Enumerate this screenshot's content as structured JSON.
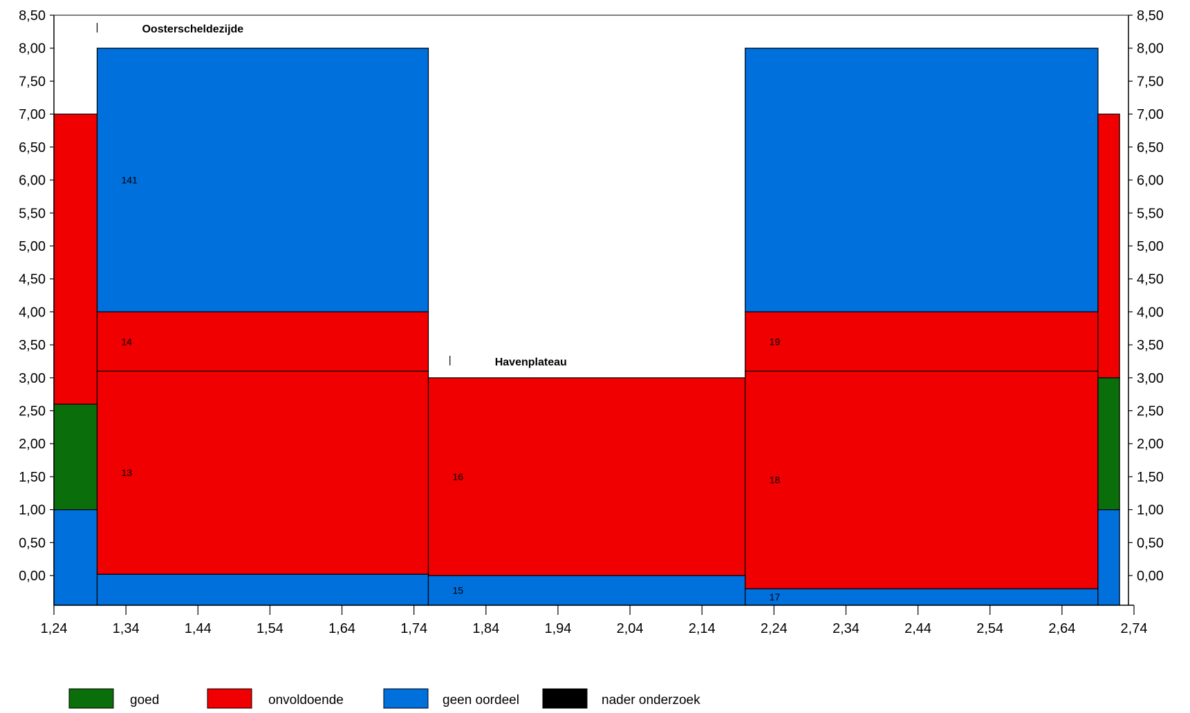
{
  "chart_data": {
    "type": "stacked-rect",
    "xlim": [
      1.24,
      2.74
    ],
    "ylim": [
      -0.45,
      8.5
    ],
    "x_ticks": [
      "1,24",
      "1,34",
      "1,44",
      "1,54",
      "1,64",
      "1,74",
      "1,84",
      "1,94",
      "2,04",
      "2,14",
      "2,24",
      "2,34",
      "2,44",
      "2,54",
      "2,64",
      "2,74"
    ],
    "x_tick_values": [
      1.24,
      1.34,
      1.44,
      1.54,
      1.64,
      1.74,
      1.84,
      1.94,
      2.04,
      2.14,
      2.24,
      2.34,
      2.44,
      2.54,
      2.64,
      2.74
    ],
    "y_ticks": [
      "0,00",
      "0,50",
      "1,00",
      "1,50",
      "2,00",
      "2,50",
      "3,00",
      "3,50",
      "4,00",
      "4,50",
      "5,00",
      "5,50",
      "6,00",
      "6,50",
      "7,00",
      "7,50",
      "8,00",
      "8,50"
    ],
    "y_tick_values": [
      0,
      0.5,
      1,
      1.5,
      2,
      2.5,
      3,
      3.5,
      4,
      4.5,
      5,
      5.5,
      6,
      6.5,
      7,
      7.5,
      8,
      8.5
    ],
    "colors": {
      "goed": "#0a6e0a",
      "onvoldoende": "#f00000",
      "geen_oordeel": "#0070dd",
      "nader_onderzoek": "#000000"
    },
    "legend": [
      {
        "key": "goed",
        "label": "goed"
      },
      {
        "key": "onvoldoende",
        "label": "onvoldoende"
      },
      {
        "key": "geen_oordeel",
        "label": "geen oordeel"
      },
      {
        "key": "nader_onderzoek",
        "label": "nader onderzoek"
      }
    ],
    "section_labels": [
      {
        "text": "Oosterscheldezijde",
        "x": 1.3,
        "y": 8.3
      },
      {
        "text": "Havenplateau",
        "x": 1.79,
        "y": 3.25
      }
    ],
    "blocks": [
      {
        "x0": 1.24,
        "x1": 1.3,
        "y0": -0.5,
        "y1": 1.0,
        "cat": "geen_oordeel",
        "label": ""
      },
      {
        "x0": 1.24,
        "x1": 1.3,
        "y0": 1.0,
        "y1": 2.6,
        "cat": "goed",
        "label": ""
      },
      {
        "x0": 1.24,
        "x1": 1.3,
        "y0": 2.6,
        "y1": 7.0,
        "cat": "onvoldoende",
        "label": ""
      },
      {
        "x0": 1.3,
        "x1": 1.76,
        "y0": -0.5,
        "y1": 0.02,
        "cat": "geen_oordeel",
        "label": ""
      },
      {
        "x0": 1.3,
        "x1": 1.76,
        "y0": 0.02,
        "y1": 3.1,
        "cat": "onvoldoende",
        "label": "13"
      },
      {
        "x0": 1.3,
        "x1": 1.76,
        "y0": 3.1,
        "y1": 4.0,
        "cat": "onvoldoende",
        "label": "14"
      },
      {
        "x0": 1.3,
        "x1": 1.76,
        "y0": 4.0,
        "y1": 8.0,
        "cat": "geen_oordeel",
        "label": "141"
      },
      {
        "x0": 1.76,
        "x1": 2.2,
        "y0": -0.5,
        "y1": 0.0,
        "cat": "geen_oordeel",
        "label": "15"
      },
      {
        "x0": 1.76,
        "x1": 2.2,
        "y0": 0.0,
        "y1": 3.0,
        "cat": "onvoldoende",
        "label": "16"
      },
      {
        "x0": 2.2,
        "x1": 2.69,
        "y0": -0.5,
        "y1": -0.2,
        "cat": "geen_oordeel",
        "label": "17"
      },
      {
        "x0": 2.2,
        "x1": 2.69,
        "y0": -0.2,
        "y1": 3.1,
        "cat": "onvoldoende",
        "label": "18"
      },
      {
        "x0": 2.2,
        "x1": 2.69,
        "y0": 3.1,
        "y1": 4.0,
        "cat": "onvoldoende",
        "label": "19"
      },
      {
        "x0": 2.2,
        "x1": 2.69,
        "y0": 4.0,
        "y1": 8.0,
        "cat": "geen_oordeel",
        "label": ""
      },
      {
        "x0": 2.69,
        "x1": 2.72,
        "y0": -0.5,
        "y1": 1.0,
        "cat": "geen_oordeel",
        "label": ""
      },
      {
        "x0": 2.69,
        "x1": 2.72,
        "y0": 1.0,
        "y1": 3.0,
        "cat": "goed",
        "label": ""
      },
      {
        "x0": 2.69,
        "x1": 2.72,
        "y0": 3.0,
        "y1": 7.0,
        "cat": "onvoldoende",
        "label": ""
      }
    ]
  }
}
